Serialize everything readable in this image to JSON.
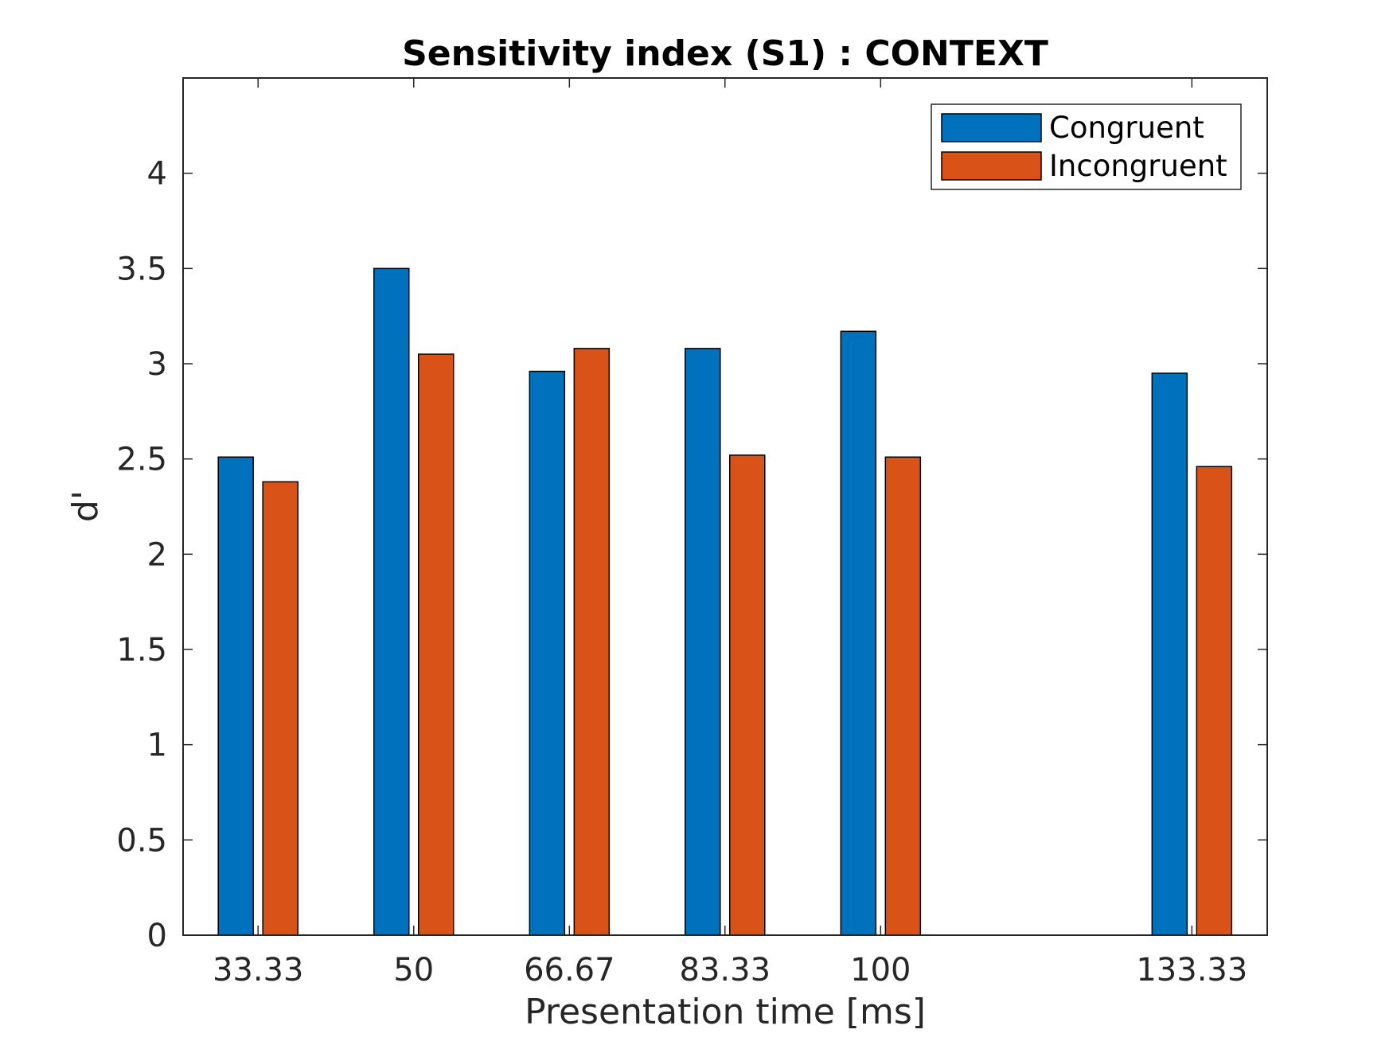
{
  "chart_data": {
    "type": "bar",
    "title": "Sensitivity index (S1) : CONTEXT",
    "xlabel": "Presentation time [ms]",
    "ylabel": "d'",
    "x": [
      33.33,
      50,
      66.67,
      83.33,
      100,
      133.33
    ],
    "categories": [
      "33.33",
      "50",
      "66.67",
      "83.33",
      "100",
      "133.33"
    ],
    "xlim": [
      25.3,
      141.4
    ],
    "ylim": [
      0,
      4.5
    ],
    "yticks": [
      0,
      0.5,
      1,
      1.5,
      2,
      2.5,
      3,
      3.5,
      4
    ],
    "ytick_labels": [
      "0",
      "0.5",
      "1",
      "1.5",
      "2",
      "2.5",
      "3",
      "3.5",
      "4"
    ],
    "series": [
      {
        "name": "Congruent",
        "color": "#0072BD",
        "values": [
          2.51,
          3.5,
          2.96,
          3.08,
          3.17,
          2.95
        ]
      },
      {
        "name": "Incongruent",
        "color": "#D95319",
        "values": [
          2.38,
          3.05,
          3.08,
          2.52,
          2.51,
          2.46
        ]
      }
    ],
    "legend": {
      "position": "top-right",
      "entries": [
        "Congruent",
        "Incongruent"
      ]
    },
    "grid": false
  }
}
